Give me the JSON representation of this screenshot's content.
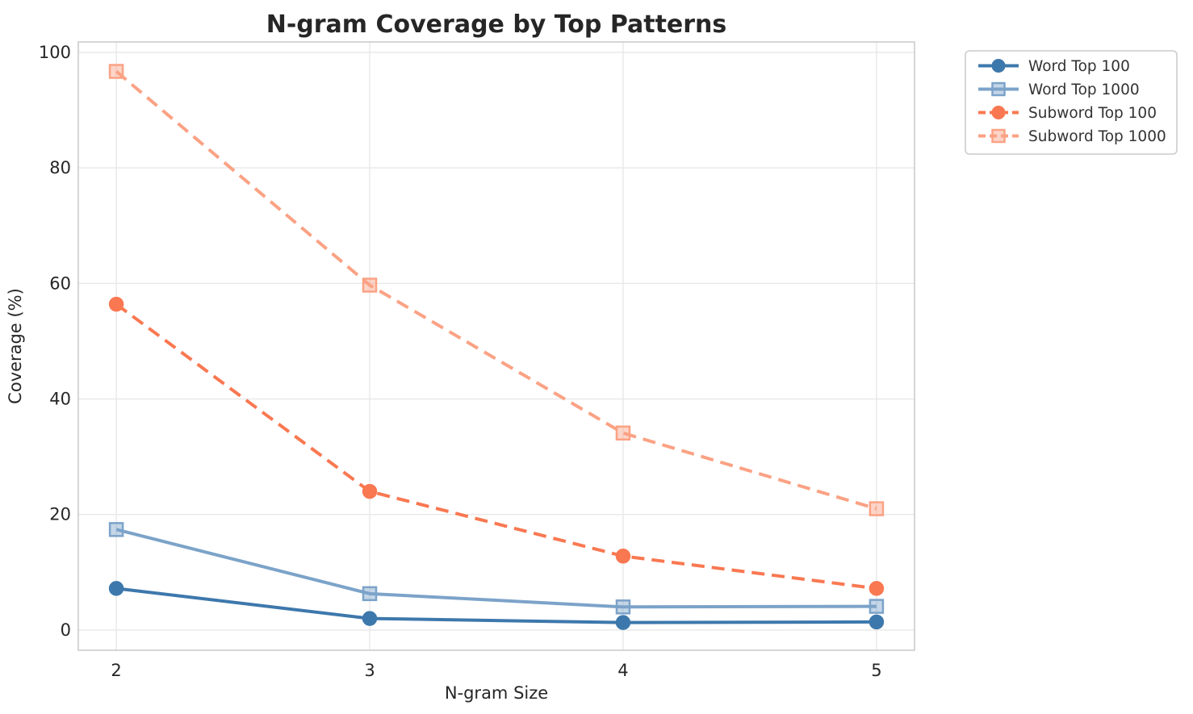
{
  "title": "N-gram Coverage by Top Patterns",
  "chart_data": {
    "type": "line",
    "title": "N-gram Coverage by Top Patterns",
    "xlabel": "N-gram Size",
    "ylabel": "Coverage (%)",
    "x": [
      2,
      3,
      4,
      5
    ],
    "xticks": [
      "2",
      "3",
      "4",
      "5"
    ],
    "yticks": [
      0,
      20,
      40,
      60,
      80,
      100
    ],
    "xlim": [
      1.85,
      5.15
    ],
    "ylim": [
      -3.5,
      101.8
    ],
    "grid": true,
    "legend_position": "outside-upper-right",
    "series": [
      {
        "name": "Word Top 100",
        "values": [
          7.2,
          2.0,
          1.3,
          1.4
        ],
        "color": "#3D78AC",
        "marker": "circle",
        "line": "solid"
      },
      {
        "name": "Word Top 1000",
        "values": [
          17.4,
          6.3,
          4.0,
          4.1
        ],
        "color": "#7CA3C9",
        "marker": "square",
        "line": "solid"
      },
      {
        "name": "Subword Top 100",
        "values": [
          56.4,
          24.0,
          12.8,
          7.2
        ],
        "color": "#F97851",
        "marker": "circle",
        "line": "dashed"
      },
      {
        "name": "Subword Top 1000",
        "values": [
          96.7,
          59.7,
          34.1,
          21.0
        ],
        "color": "#FBA284",
        "marker": "square",
        "line": "dashed"
      }
    ],
    "colors": {
      "background": "#FFFFFF",
      "grid": "#E8E8E8",
      "spine": "#CCCCCC",
      "text": "#262626",
      "legend_border": "#CCCCCC",
      "legend_background": "#FFFFFF"
    }
  }
}
